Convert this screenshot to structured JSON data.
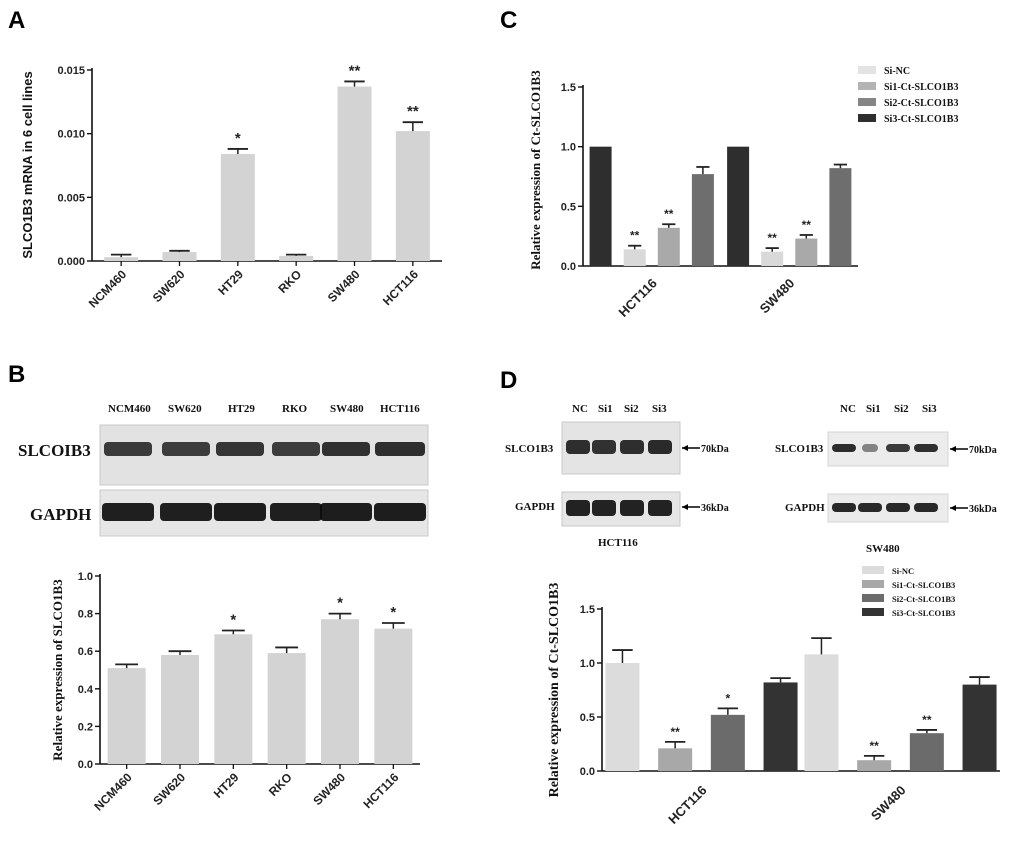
{
  "panels": {
    "A": "A",
    "B": "B",
    "C": "C",
    "D": "D"
  },
  "chart_data": [
    {
      "id": "A",
      "type": "bar",
      "categories": [
        "NCM460",
        "SW620",
        "HT29",
        "RKO",
        "SW480",
        "HCT116"
      ],
      "values": [
        0.0003,
        0.0007,
        0.0084,
        0.0004,
        0.0137,
        0.0102
      ],
      "errors": [
        0.0002,
        0.0001,
        0.0004,
        0.0001,
        0.0004,
        0.0007
      ],
      "significance": [
        "",
        "",
        "*",
        "",
        "**",
        "**"
      ],
      "ylabel": "SLCO1B3 mRNA in 6 cell lines",
      "ylim": [
        0,
        0.015
      ],
      "yticks": [
        0,
        0.005,
        0.01,
        0.015
      ],
      "ytick_labels": [
        "0.000",
        "0.005",
        "0.010",
        "0.015"
      ],
      "color": "#d3d3d3"
    },
    {
      "id": "B",
      "type": "bar",
      "categories": [
        "NCM460",
        "SW620",
        "HT29",
        "RKO",
        "SW480",
        "HCT116"
      ],
      "values": [
        0.51,
        0.58,
        0.69,
        0.59,
        0.77,
        0.72
      ],
      "errors": [
        0.02,
        0.02,
        0.02,
        0.03,
        0.03,
        0.03
      ],
      "significance": [
        "",
        "",
        "*",
        "",
        "*",
        "*"
      ],
      "ylabel": "Relative expression of SLCO1B3",
      "ylim": [
        0,
        1.0
      ],
      "yticks": [
        0,
        0.2,
        0.4,
        0.6,
        0.8,
        1.0
      ],
      "ytick_labels": [
        "0.0",
        "0.2",
        "0.4",
        "0.6",
        "0.8",
        "1.0"
      ],
      "color": "#d3d3d3"
    },
    {
      "id": "C",
      "type": "bar",
      "categories": [
        "HCT116",
        "SW480"
      ],
      "series": [
        {
          "name": "Si-NC",
          "values": [
            1.0,
            1.0
          ],
          "errors": [
            0,
            0
          ],
          "significance": [
            "",
            ""
          ],
          "color": "#2e2e2e"
        },
        {
          "name": "Si1-Ct-SLCO1B3",
          "values": [
            0.14,
            0.12
          ],
          "errors": [
            0.03,
            0.03
          ],
          "significance": [
            "**",
            "**"
          ],
          "color": "#d9d9d9"
        },
        {
          "name": "Si2-Ct-SLCO1B3",
          "values": [
            0.32,
            0.23
          ],
          "errors": [
            0.03,
            0.03
          ],
          "significance": [
            "**",
            "**"
          ],
          "color": "#a9a9a9"
        },
        {
          "name": "Si3-Ct-SLCO1B3",
          "values": [
            0.77,
            0.82
          ],
          "errors": [
            0.06,
            0.03
          ],
          "significance": [
            "",
            ""
          ],
          "color": "#6e6e6e"
        }
      ],
      "legend_colors": [
        "#e3e3e3",
        "#b3b3b3",
        "#858585",
        "#2e2e2e"
      ],
      "ylabel": "Relative expression of Ct-SLCO1B3",
      "ylim": [
        0,
        1.5
      ],
      "yticks": [
        0,
        0.5,
        1.0,
        1.5
      ],
      "ytick_labels": [
        "0.0",
        "0.5",
        "1.0",
        "1.5"
      ],
      "legend_position": "top-right"
    },
    {
      "id": "D",
      "type": "bar",
      "categories": [
        "HCT116",
        "SW480"
      ],
      "series": [
        {
          "name": "Si-NC",
          "values": [
            1.0,
            1.08
          ],
          "errors": [
            0.12,
            0.15
          ],
          "significance": [
            "",
            ""
          ],
          "color": "#dcdcdc"
        },
        {
          "name": "Si1-Ct-SLCO1B3",
          "values": [
            0.21,
            0.1
          ],
          "errors": [
            0.06,
            0.04
          ],
          "significance": [
            "**",
            "**"
          ],
          "color": "#a8a8a8"
        },
        {
          "name": "Si2-Ct-SLCO1B3",
          "values": [
            0.52,
            0.35
          ],
          "errors": [
            0.06,
            0.03
          ],
          "significance": [
            "*",
            "**"
          ],
          "color": "#6b6b6b"
        },
        {
          "name": "Si3-Ct-SLCO1B3",
          "values": [
            0.82,
            0.8
          ],
          "errors": [
            0.04,
            0.07
          ],
          "significance": [
            "",
            ""
          ],
          "color": "#333333"
        }
      ],
      "ylabel": "Relative expression of Ct-SLCO1B3",
      "ylim": [
        0,
        1.5
      ],
      "yticks": [
        0,
        0.5,
        1.0,
        1.5
      ],
      "ytick_labels": [
        "0.0",
        "0.5",
        "1.0",
        "1.5"
      ],
      "legend_position": "top-right"
    }
  ],
  "blots": {
    "B": {
      "lanes": [
        "NCM460",
        "SW620",
        "HT29",
        "RKO",
        "SW480",
        "HCT116"
      ],
      "rows": [
        "SLCOIB3",
        "GAPDH"
      ]
    },
    "D_left": {
      "lanes": [
        "NC",
        "Si1",
        "Si2",
        "Si3"
      ],
      "rows": [
        "SLCO1B3",
        "GAPDH"
      ],
      "markers": [
        "70kDa",
        "36kDa"
      ],
      "caption": "HCT116"
    },
    "D_right": {
      "lanes": [
        "NC",
        "Si1",
        "Si2",
        "Si3"
      ],
      "rows": [
        "SLCO1B3",
        "GAPDH"
      ],
      "markers": [
        "70kDa",
        "36kDa"
      ],
      "caption": "SW480"
    }
  }
}
